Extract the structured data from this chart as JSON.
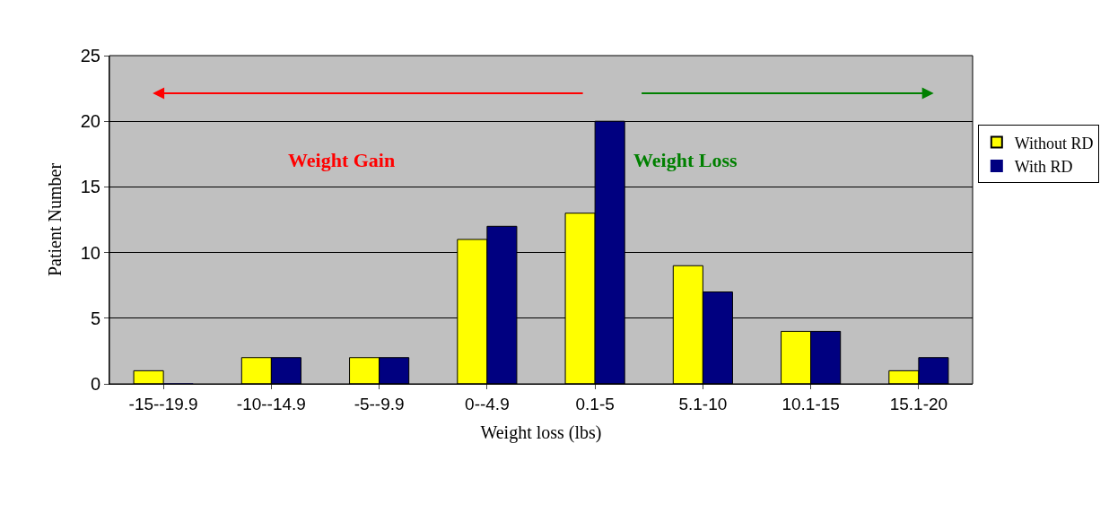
{
  "chart_data": {
    "type": "bar",
    "xlabel": "Weight loss (lbs)",
    "ylabel": "Patient Number",
    "categories": [
      "-15--19.9",
      "-10--14.9",
      "-5--9.9",
      "0--4.9",
      "0.1-5",
      "5.1-10",
      "10.1-15",
      "15.1-20"
    ],
    "series": [
      {
        "name": "Without RD",
        "color": "#ffff00",
        "values": [
          1,
          2,
          2,
          11,
          13,
          9,
          4,
          1
        ]
      },
      {
        "name": "With RD",
        "color": "#000080",
        "values": [
          0,
          2,
          2,
          12,
          20,
          7,
          4,
          2
        ]
      }
    ],
    "ylim": [
      0,
      25
    ],
    "yticks": [
      0,
      5,
      10,
      15,
      20,
      25
    ],
    "grid": "y",
    "legend": "right",
    "annotations": [
      "Weight Gain",
      "Weight Loss"
    ]
  }
}
